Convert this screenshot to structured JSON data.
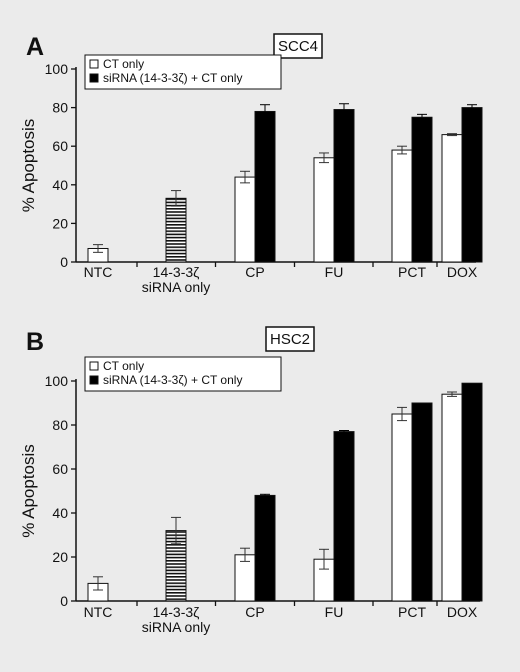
{
  "chart_data": [
    {
      "type": "bar",
      "panel_label": "A",
      "cell_line": "SCC4",
      "ylabel": "% Apoptosis",
      "ylim": [
        0,
        100
      ],
      "yticks": [
        0,
        20,
        40,
        60,
        80,
        100
      ],
      "categories": [
        {
          "label": "NTC",
          "sublabel": ""
        },
        {
          "label": "14-3-3ζ",
          "sublabel": "siRNA only"
        },
        {
          "label": "CP",
          "sublabel": ""
        },
        {
          "label": "FU",
          "sublabel": ""
        },
        {
          "label": "PCT",
          "sublabel": ""
        },
        {
          "label": "DOX",
          "sublabel": ""
        }
      ],
      "legend": {
        "position": "top-left"
      },
      "series": [
        {
          "name": "CT only",
          "style": "white",
          "values": [
            null,
            null,
            44,
            54,
            58,
            66
          ],
          "errors": [
            null,
            null,
            3,
            2.5,
            2,
            0.5
          ]
        },
        {
          "name": "siRNA (14-3-3ζ) + CT only",
          "style": "black",
          "values": [
            null,
            null,
            78,
            79,
            75,
            80
          ],
          "errors": [
            null,
            null,
            3.5,
            3,
            1.5,
            1.5
          ]
        },
        {
          "name": "",
          "style": "white",
          "values": [
            7,
            null,
            null,
            null,
            null,
            null
          ],
          "errors": [
            2,
            null,
            null,
            null,
            null,
            null
          ]
        },
        {
          "name": "",
          "style": "striped",
          "values": [
            null,
            33,
            null,
            null,
            null,
            null
          ],
          "errors": [
            null,
            4,
            null,
            null,
            null,
            null
          ]
        }
      ]
    },
    {
      "type": "bar",
      "panel_label": "B",
      "cell_line": "HSC2",
      "ylabel": "% Apoptosis",
      "ylim": [
        0,
        100
      ],
      "yticks": [
        0,
        20,
        40,
        60,
        80,
        100
      ],
      "categories": [
        {
          "label": "NTC",
          "sublabel": ""
        },
        {
          "label": "14-3-3ζ",
          "sublabel": "siRNA only"
        },
        {
          "label": "CP",
          "sublabel": ""
        },
        {
          "label": "FU",
          "sublabel": ""
        },
        {
          "label": "PCT",
          "sublabel": ""
        },
        {
          "label": "DOX",
          "sublabel": ""
        }
      ],
      "legend": {
        "position": "top-left"
      },
      "series": [
        {
          "name": "CT only",
          "style": "white",
          "values": [
            null,
            null,
            21,
            19,
            85,
            94
          ],
          "errors": [
            null,
            null,
            3,
            4.5,
            3,
            1
          ]
        },
        {
          "name": "siRNA (14-3-3ζ) + CT only",
          "style": "black",
          "values": [
            null,
            null,
            48,
            77,
            90,
            99
          ],
          "errors": [
            null,
            null,
            0.5,
            0.5,
            0,
            0
          ]
        },
        {
          "name": "",
          "style": "white",
          "values": [
            8,
            null,
            null,
            null,
            null,
            null
          ],
          "errors": [
            3,
            null,
            null,
            null,
            null,
            null
          ]
        },
        {
          "name": "",
          "style": "striped",
          "values": [
            null,
            32,
            null,
            null,
            null,
            null
          ],
          "errors": [
            null,
            6,
            null,
            null,
            null,
            null
          ]
        }
      ]
    }
  ]
}
